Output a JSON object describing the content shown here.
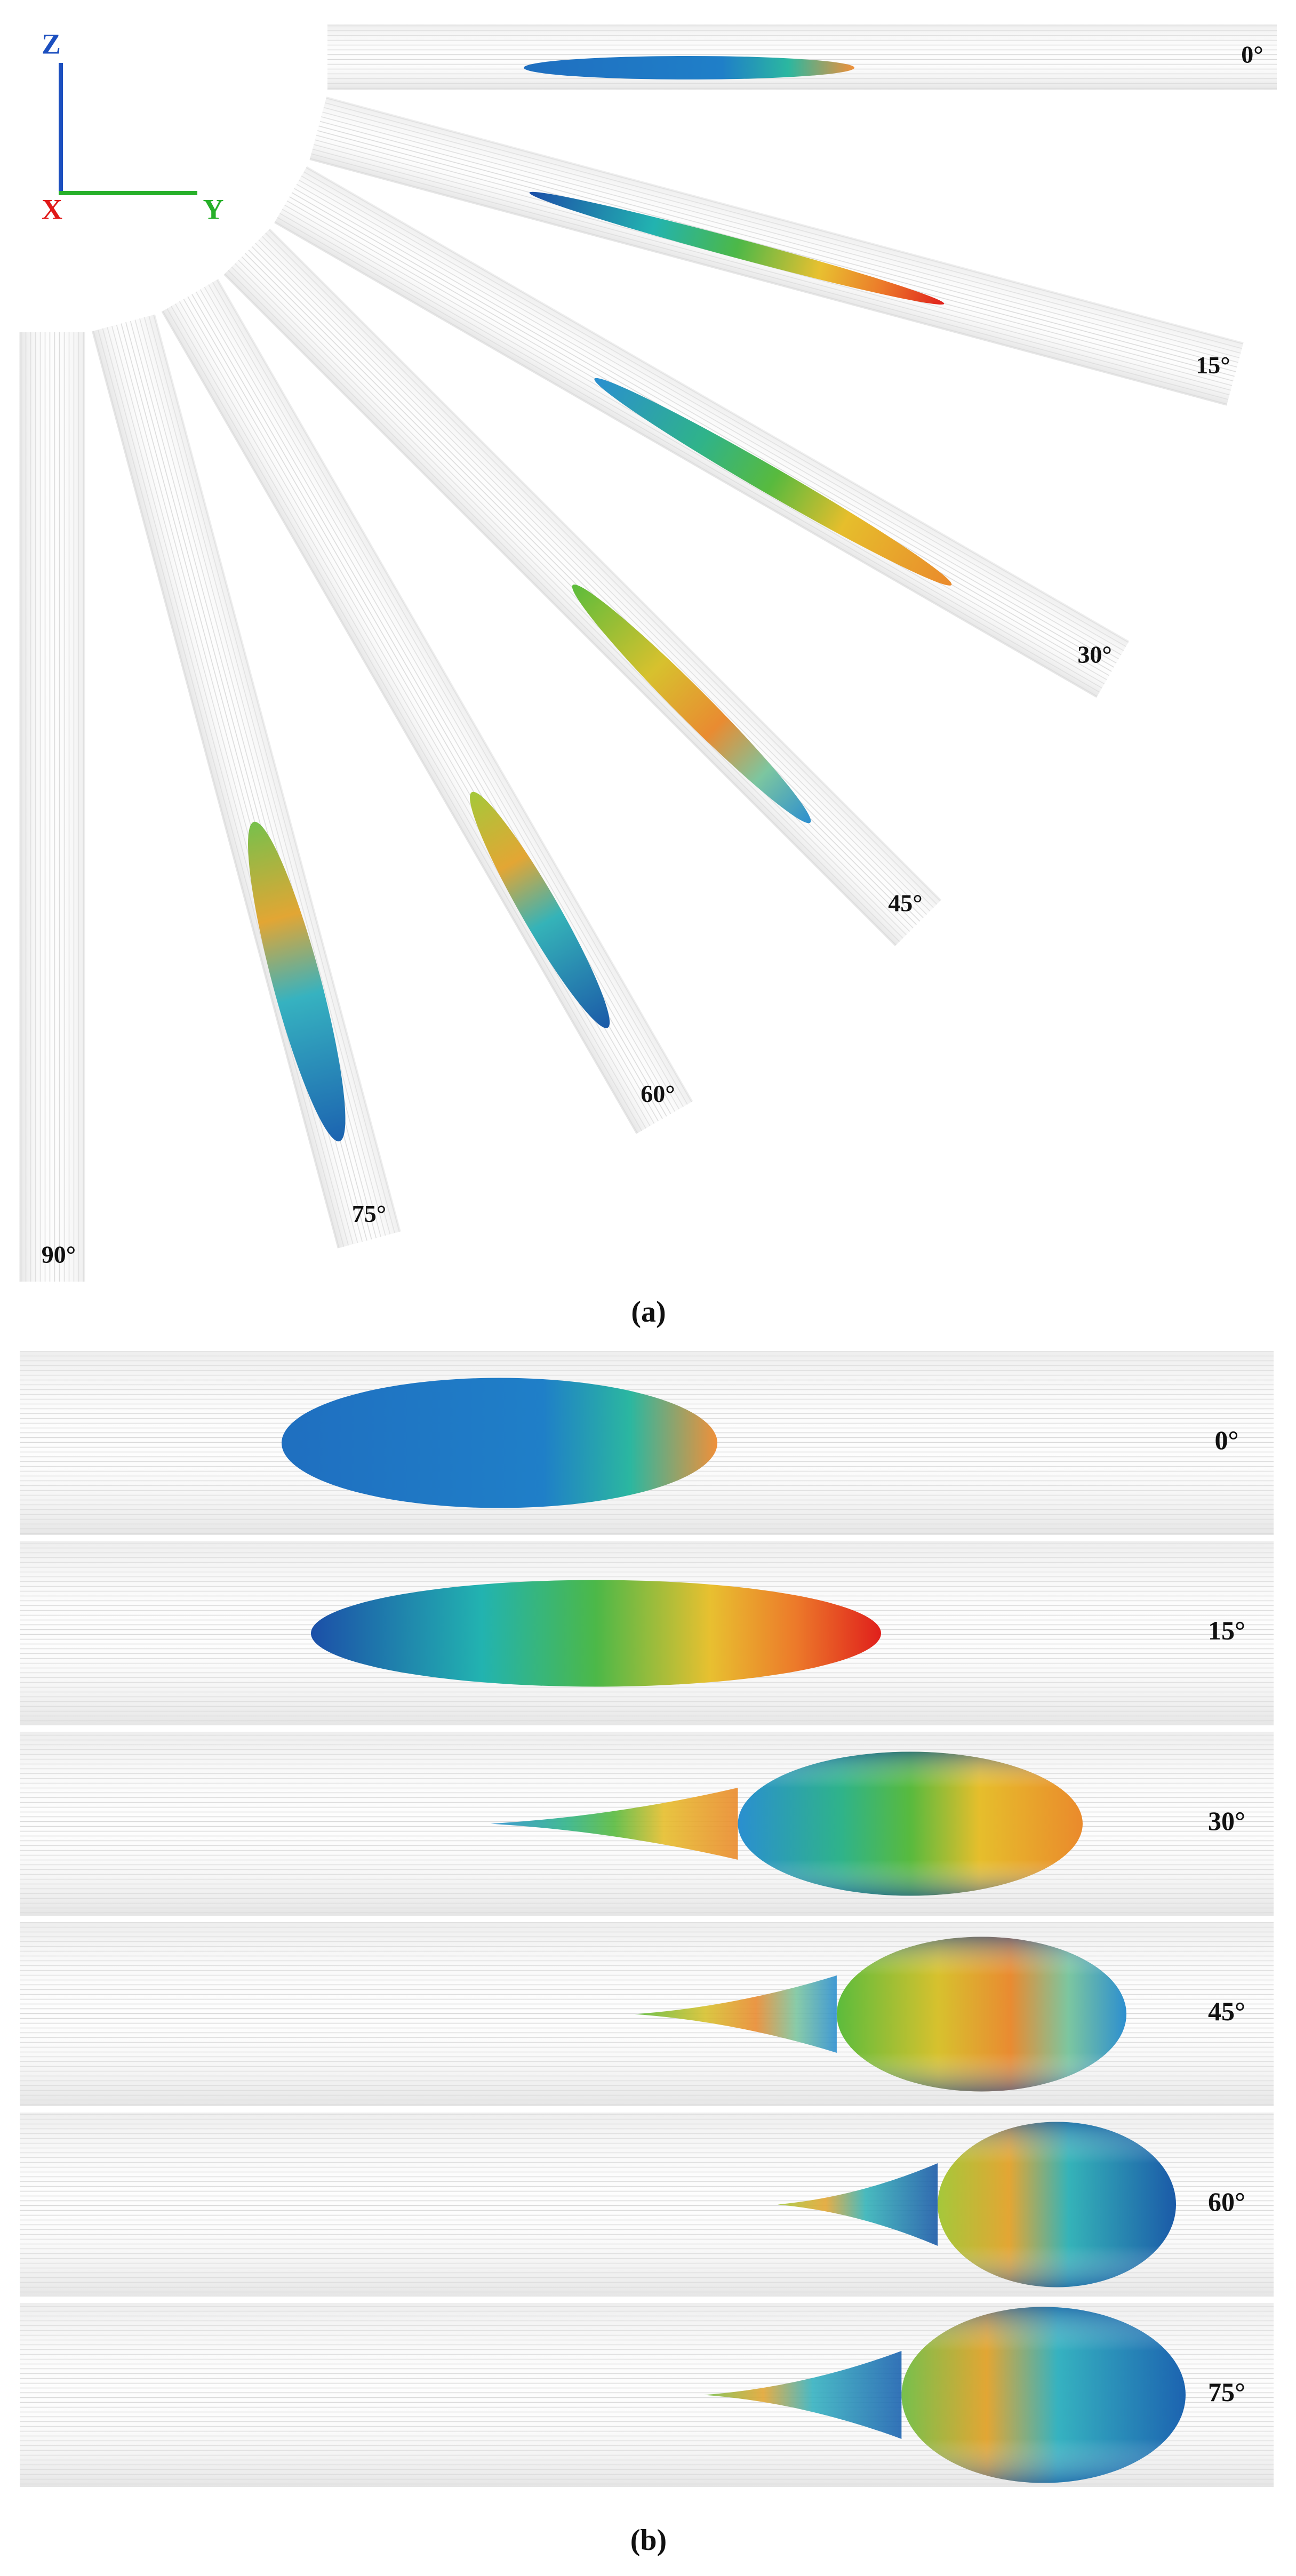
{
  "axes": {
    "z": "Z",
    "x": "X",
    "y": "Y"
  },
  "panel_a": {
    "angles": [
      "0°",
      "15°",
      "30°",
      "45°",
      "60°",
      "75°",
      "90°"
    ],
    "caption": "(a)"
  },
  "panel_b": {
    "angles": [
      "0°",
      "15°",
      "30°",
      "45°",
      "60°",
      "75°"
    ],
    "caption": "(b)"
  }
}
